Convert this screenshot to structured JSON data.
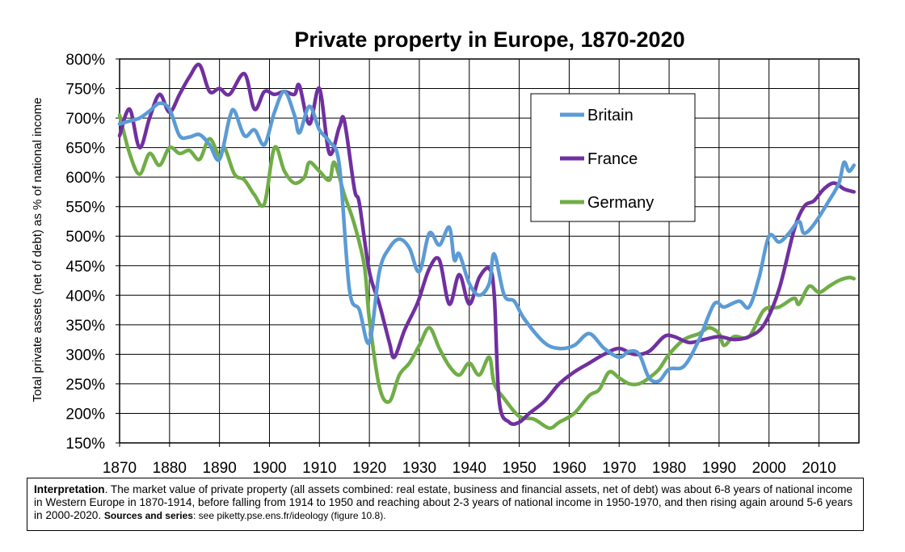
{
  "chart_data": {
    "type": "line",
    "title": "Private property in Europe, 1870-2020",
    "ylabel": "Total private assets (net of debt) as % of national income",
    "xlabel": "",
    "xlim": [
      1870,
      2018
    ],
    "ylim": [
      150,
      800
    ],
    "x_ticks": [
      1870,
      1880,
      1890,
      1900,
      1910,
      1920,
      1930,
      1940,
      1950,
      1960,
      1970,
      1980,
      1990,
      2000,
      2010
    ],
    "y_ticks": [
      150,
      200,
      250,
      300,
      350,
      400,
      450,
      500,
      550,
      600,
      650,
      700,
      750,
      800
    ],
    "y_tick_suffix": "%",
    "grid": true,
    "legend_position": "top-right",
    "series": [
      {
        "name": "Britain",
        "color": "#5b9bd5",
        "points": [
          [
            1870,
            690
          ],
          [
            1872,
            695
          ],
          [
            1874,
            700
          ],
          [
            1876,
            712
          ],
          [
            1878,
            725
          ],
          [
            1880,
            715
          ],
          [
            1882,
            670
          ],
          [
            1884,
            668
          ],
          [
            1886,
            672
          ],
          [
            1888,
            655
          ],
          [
            1890,
            630
          ],
          [
            1892,
            700
          ],
          [
            1893,
            712
          ],
          [
            1895,
            670
          ],
          [
            1897,
            680
          ],
          [
            1899,
            655
          ],
          [
            1901,
            710
          ],
          [
            1903,
            745
          ],
          [
            1905,
            705
          ],
          [
            1906,
            675
          ],
          [
            1908,
            720
          ],
          [
            1910,
            680
          ],
          [
            1912,
            660
          ],
          [
            1914,
            620
          ],
          [
            1916,
            410
          ],
          [
            1918,
            375
          ],
          [
            1920,
            320
          ],
          [
            1922,
            440
          ],
          [
            1924,
            480
          ],
          [
            1926,
            495
          ],
          [
            1928,
            480
          ],
          [
            1930,
            440
          ],
          [
            1932,
            505
          ],
          [
            1934,
            485
          ],
          [
            1936,
            515
          ],
          [
            1937,
            460
          ],
          [
            1938,
            470
          ],
          [
            1940,
            420
          ],
          [
            1942,
            400
          ],
          [
            1944,
            420
          ],
          [
            1945,
            470
          ],
          [
            1947,
            400
          ],
          [
            1949,
            390
          ],
          [
            1951,
            360
          ],
          [
            1955,
            320
          ],
          [
            1958,
            310
          ],
          [
            1961,
            315
          ],
          [
            1964,
            335
          ],
          [
            1967,
            310
          ],
          [
            1970,
            295
          ],
          [
            1972,
            305
          ],
          [
            1974,
            300
          ],
          [
            1976,
            260
          ],
          [
            1978,
            255
          ],
          [
            1980,
            275
          ],
          [
            1983,
            280
          ],
          [
            1986,
            325
          ],
          [
            1989,
            385
          ],
          [
            1991,
            380
          ],
          [
            1994,
            390
          ],
          [
            1996,
            380
          ],
          [
            1998,
            430
          ],
          [
            2000,
            500
          ],
          [
            2002,
            490
          ],
          [
            2004,
            505
          ],
          [
            2006,
            525
          ],
          [
            2007,
            505
          ],
          [
            2009,
            520
          ],
          [
            2012,
            560
          ],
          [
            2014,
            590
          ],
          [
            2015,
            625
          ],
          [
            2016,
            610
          ],
          [
            2017,
            620
          ]
        ]
      },
      {
        "name": "France",
        "color": "#7030a0",
        "points": [
          [
            1870,
            670
          ],
          [
            1872,
            715
          ],
          [
            1874,
            650
          ],
          [
            1876,
            700
          ],
          [
            1878,
            740
          ],
          [
            1880,
            710
          ],
          [
            1882,
            740
          ],
          [
            1884,
            770
          ],
          [
            1886,
            790
          ],
          [
            1888,
            745
          ],
          [
            1890,
            750
          ],
          [
            1892,
            740
          ],
          [
            1895,
            775
          ],
          [
            1897,
            715
          ],
          [
            1899,
            745
          ],
          [
            1901,
            740
          ],
          [
            1903,
            745
          ],
          [
            1905,
            740
          ],
          [
            1906,
            755
          ],
          [
            1908,
            690
          ],
          [
            1910,
            750
          ],
          [
            1912,
            640
          ],
          [
            1914,
            685
          ],
          [
            1915,
            695
          ],
          [
            1917,
            580
          ],
          [
            1918,
            555
          ],
          [
            1920,
            440
          ],
          [
            1922,
            385
          ],
          [
            1924,
            320
          ],
          [
            1925,
            295
          ],
          [
            1927,
            340
          ],
          [
            1929,
            375
          ],
          [
            1930,
            395
          ],
          [
            1932,
            445
          ],
          [
            1934,
            460
          ],
          [
            1936,
            385
          ],
          [
            1938,
            435
          ],
          [
            1940,
            385
          ],
          [
            1942,
            430
          ],
          [
            1944,
            445
          ],
          [
            1945,
            400
          ],
          [
            1946,
            220
          ],
          [
            1948,
            185
          ],
          [
            1950,
            185
          ],
          [
            1952,
            200
          ],
          [
            1955,
            220
          ],
          [
            1958,
            250
          ],
          [
            1961,
            270
          ],
          [
            1964,
            285
          ],
          [
            1967,
            300
          ],
          [
            1970,
            310
          ],
          [
            1973,
            300
          ],
          [
            1976,
            305
          ],
          [
            1979,
            330
          ],
          [
            1981,
            330
          ],
          [
            1984,
            320
          ],
          [
            1987,
            325
          ],
          [
            1990,
            330
          ],
          [
            1993,
            325
          ],
          [
            1996,
            330
          ],
          [
            1999,
            350
          ],
          [
            2002,
            410
          ],
          [
            2005,
            510
          ],
          [
            2007,
            550
          ],
          [
            2009,
            560
          ],
          [
            2011,
            580
          ],
          [
            2013,
            590
          ],
          [
            2015,
            580
          ],
          [
            2017,
            575
          ]
        ]
      },
      {
        "name": "Germany",
        "color": "#70ad47",
        "points": [
          [
            1870,
            705
          ],
          [
            1872,
            640
          ],
          [
            1874,
            605
          ],
          [
            1876,
            640
          ],
          [
            1878,
            620
          ],
          [
            1880,
            650
          ],
          [
            1882,
            640
          ],
          [
            1884,
            645
          ],
          [
            1886,
            630
          ],
          [
            1888,
            665
          ],
          [
            1890,
            635
          ],
          [
            1891,
            650
          ],
          [
            1893,
            605
          ],
          [
            1895,
            595
          ],
          [
            1897,
            570
          ],
          [
            1899,
            555
          ],
          [
            1901,
            650
          ],
          [
            1903,
            610
          ],
          [
            1905,
            590
          ],
          [
            1907,
            600
          ],
          [
            1908,
            625
          ],
          [
            1910,
            610
          ],
          [
            1912,
            595
          ],
          [
            1913,
            625
          ],
          [
            1915,
            570
          ],
          [
            1917,
            520
          ],
          [
            1919,
            450
          ],
          [
            1920,
            360
          ],
          [
            1922,
            245
          ],
          [
            1924,
            220
          ],
          [
            1926,
            265
          ],
          [
            1928,
            285
          ],
          [
            1930,
            315
          ],
          [
            1932,
            345
          ],
          [
            1934,
            310
          ],
          [
            1936,
            280
          ],
          [
            1938,
            265
          ],
          [
            1940,
            285
          ],
          [
            1942,
            265
          ],
          [
            1944,
            295
          ],
          [
            1945,
            250
          ],
          [
            1947,
            225
          ],
          [
            1950,
            195
          ],
          [
            1953,
            190
          ],
          [
            1956,
            175
          ],
          [
            1958,
            185
          ],
          [
            1961,
            200
          ],
          [
            1964,
            230
          ],
          [
            1966,
            240
          ],
          [
            1968,
            270
          ],
          [
            1970,
            260
          ],
          [
            1972,
            250
          ],
          [
            1974,
            250
          ],
          [
            1976,
            260
          ],
          [
            1978,
            275
          ],
          [
            1980,
            300
          ],
          [
            1983,
            325
          ],
          [
            1986,
            335
          ],
          [
            1988,
            345
          ],
          [
            1990,
            335
          ],
          [
            1991,
            315
          ],
          [
            1993,
            330
          ],
          [
            1996,
            330
          ],
          [
            1999,
            375
          ],
          [
            2002,
            380
          ],
          [
            2005,
            395
          ],
          [
            2006,
            385
          ],
          [
            2008,
            415
          ],
          [
            2010,
            405
          ],
          [
            2012,
            415
          ],
          [
            2014,
            425
          ],
          [
            2016,
            430
          ],
          [
            2017,
            428
          ]
        ]
      }
    ]
  },
  "caption": {
    "heading": "Interpretation",
    "text": ". The market value of private property (all assets combined: real estate, business and financial assets, net of debt) was about 6-8 years of national income in Western Europe in 1870-1914, before falling from 1914 to 1950 and reaching about 2-3 years of national income in 1950-1970, and then rising again around 5-6 years in 2000-2020.   ",
    "sources_label": "Sources and series",
    "sources_text": ": see piketty.pse.ens.fr/ideology (figure 10.8)."
  }
}
